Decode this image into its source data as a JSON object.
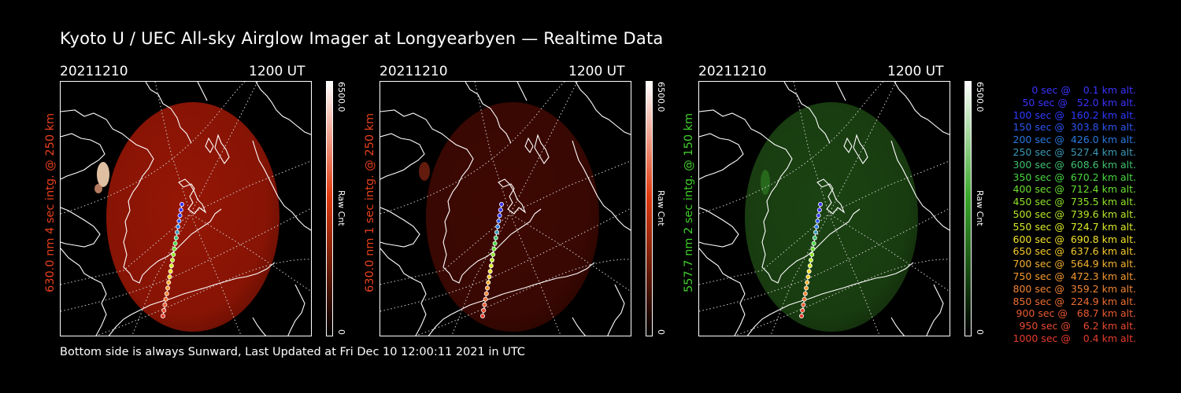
{
  "title": "Kyoto U / UEC All-sky Airglow Imager at Longyearbyen — Realtime Data",
  "footer": "Bottom side is always Sunward, Last Updated at Fri Dec 10 12:00:11 2021 in UTC",
  "panels": [
    {
      "date": "20211210",
      "time": "1200 UT",
      "ylabel": "630.0 nm  4 sec intg. @ 250 km",
      "ylabel_color": "#e8401c",
      "cbar_max": "6500.0",
      "cbar_label": "Raw Cnt",
      "cbar_min": "0",
      "cbar_color": "#e03a10",
      "image_color": "#b01a06",
      "image_opacity": 0.85
    },
    {
      "date": "20211210",
      "time": "1200 UT",
      "ylabel": "630.0 nm  1 sec intg. @ 250 km",
      "ylabel_color": "#e8401c",
      "cbar_max": "6500.0",
      "cbar_label": "Raw Cnt",
      "cbar_min": "0",
      "cbar_color": "#e03a10",
      "image_color": "#4a0a02",
      "image_opacity": 0.85
    },
    {
      "date": "20211210",
      "time": "1200 UT",
      "ylabel": "557.7 nm  2 sec intg. @ 150 km",
      "ylabel_color": "#3fd02a",
      "cbar_max": "6500.0",
      "cbar_label": "Raw Cnt",
      "cbar_min": "0",
      "cbar_color": "#3aa82c",
      "image_color": "#1e4a14",
      "image_opacity": 0.9
    }
  ],
  "legend": [
    {
      "text": "   0 sec @    0.1 km alt.",
      "color": "#3b33ff"
    },
    {
      "text": "  50 sec @   52.0 km alt.",
      "color": "#3b33ff"
    },
    {
      "text": " 100 sec @  160.2 km alt.",
      "color": "#2f3aff"
    },
    {
      "text": " 150 sec @  303.8 km alt.",
      "color": "#2a55f0"
    },
    {
      "text": " 200 sec @  426.0 km alt.",
      "color": "#2a7ae0"
    },
    {
      "text": " 250 sec @  527.4 km alt.",
      "color": "#3a9ab8"
    },
    {
      "text": " 300 sec @  608.6 km alt.",
      "color": "#40c070"
    },
    {
      "text": " 350 sec @  670.2 km alt.",
      "color": "#48d840"
    },
    {
      "text": " 400 sec @  712.4 km alt.",
      "color": "#6ae030"
    },
    {
      "text": " 450 sec @  735.5 km alt.",
      "color": "#90e42a"
    },
    {
      "text": " 500 sec @  739.6 km alt.",
      "color": "#b8e828"
    },
    {
      "text": " 550 sec @  724.7 km alt.",
      "color": "#dcec28"
    },
    {
      "text": " 600 sec @  690.8 km alt.",
      "color": "#f2e22a"
    },
    {
      "text": " 650 sec @  637.6 km alt.",
      "color": "#f5cc2c"
    },
    {
      "text": " 700 sec @  564.9 km alt.",
      "color": "#f5b22e"
    },
    {
      "text": " 750 sec @  472.3 km alt.",
      "color": "#f59a30"
    },
    {
      "text": " 800 sec @  359.2 km alt.",
      "color": "#f28432"
    },
    {
      "text": " 850 sec @  224.9 km alt.",
      "color": "#ee6e32"
    },
    {
      "text": " 900 sec @   68.7 km alt.",
      "color": "#ea5a32"
    },
    {
      "text": " 950 sec @    6.2 km alt.",
      "color": "#e84a30"
    },
    {
      "text": "1000 sec @    0.4 km alt.",
      "color": "#e63c2e"
    }
  ]
}
